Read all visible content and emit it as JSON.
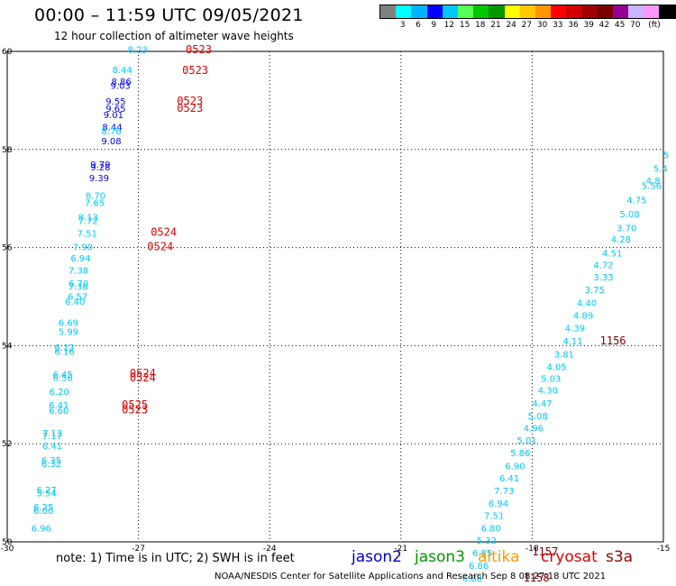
{
  "header": {
    "title": "00:00 – 11:59 UTC 09/05/2021",
    "subtitle": "12 hour collection of altimeter wave heights"
  },
  "legend": {
    "colors": [
      "#808080",
      "#00ffff",
      "#00b4ff",
      "#0000ff",
      "#00c8ff",
      "#55ff55",
      "#00c800",
      "#009600",
      "#ffff00",
      "#ffc800",
      "#ff9600",
      "#ff0000",
      "#d20000",
      "#a00000",
      "#780000",
      "#960096",
      "#c8b4ff",
      "#ff96ff",
      "#000000"
    ],
    "labels": [
      "3",
      "6",
      "9",
      "12",
      "15",
      "18",
      "21",
      "24",
      "27",
      "30",
      "33",
      "36",
      "39",
      "42",
      "45",
      "70"
    ],
    "unit": "(ft)"
  },
  "axes": {
    "x_ticks": [
      "-30",
      "-27",
      "-24",
      "-21",
      "-18",
      "-15"
    ],
    "y_ticks": [
      "50",
      "52",
      "54",
      "56",
      "58",
      "60"
    ]
  },
  "note": "note: 1) Time is in UTC; 2) SWH is in feet",
  "satellites": [
    {
      "name": "jason2",
      "color": "#0000cc"
    },
    {
      "name": "jason3",
      "color": "#009900"
    },
    {
      "name": "altika",
      "color": "#ff9900"
    },
    {
      "name": "cryosat",
      "color": "#dd0000"
    },
    {
      "name": "s3a",
      "color": "#990000"
    }
  ],
  "credit": "NOAA/NESDIS Center for Satellite Applications and Research   Sep  8 08:27:18 UTC 2021",
  "chart_data": {
    "type": "scatter",
    "xlim": [
      -30,
      -15
    ],
    "ylim": [
      50,
      60
    ],
    "grid": true,
    "points": [
      {
        "lon": -27.25,
        "lat": 59.97,
        "v": "8.23",
        "c": "#00c8ff"
      },
      {
        "lon": -27.6,
        "lat": 59.56,
        "v": "8.44",
        "c": "#00c8ff"
      },
      {
        "lon": -27.62,
        "lat": 59.32,
        "v": "8.86",
        "c": "#0000ff"
      },
      {
        "lon": -27.64,
        "lat": 59.24,
        "v": "9.03",
        "c": "#0000ff"
      },
      {
        "lon": -27.75,
        "lat": 58.92,
        "v": "9.55",
        "c": "#0000ff"
      },
      {
        "lon": -27.75,
        "lat": 58.77,
        "v": "9.65",
        "c": "#0000ff"
      },
      {
        "lon": -27.8,
        "lat": 58.64,
        "v": "9.01",
        "c": "#0000ff"
      },
      {
        "lon": -27.83,
        "lat": 58.39,
        "v": "8.44",
        "c": "#0000ff"
      },
      {
        "lon": -27.85,
        "lat": 58.31,
        "v": "8.76",
        "c": "#00c8ff"
      },
      {
        "lon": -27.85,
        "lat": 58.11,
        "v": "9.08",
        "c": "#0000ff"
      },
      {
        "lon": -28.1,
        "lat": 57.63,
        "v": "9.79",
        "c": "#0000ff"
      },
      {
        "lon": -28.1,
        "lat": 57.57,
        "v": "9.28",
        "c": "#0000ff"
      },
      {
        "lon": -28.13,
        "lat": 57.35,
        "v": "9.39",
        "c": "#0000ff"
      },
      {
        "lon": -28.21,
        "lat": 56.99,
        "v": "8.70",
        "c": "#00c8ff"
      },
      {
        "lon": -28.23,
        "lat": 56.85,
        "v": "7.65",
        "c": "#00c8ff"
      },
      {
        "lon": -28.38,
        "lat": 56.55,
        "v": "8.13",
        "c": "#00c8ff"
      },
      {
        "lon": -28.38,
        "lat": 56.48,
        "v": "7.72",
        "c": "#00c8ff"
      },
      {
        "lon": -28.4,
        "lat": 56.22,
        "v": "7.51",
        "c": "#00c8ff"
      },
      {
        "lon": -28.5,
        "lat": 55.95,
        "v": "7.90",
        "c": "#00c8ff"
      },
      {
        "lon": -28.55,
        "lat": 55.72,
        "v": "6.94",
        "c": "#00c8ff"
      },
      {
        "lon": -28.6,
        "lat": 55.47,
        "v": "7.38",
        "c": "#00c8ff"
      },
      {
        "lon": -28.6,
        "lat": 55.2,
        "v": "6.70",
        "c": "#00c8ff"
      },
      {
        "lon": -28.61,
        "lat": 55.14,
        "v": "7.38",
        "c": "#00c8ff"
      },
      {
        "lon": -28.62,
        "lat": 54.94,
        "v": "6.57",
        "c": "#00c8ff"
      },
      {
        "lon": -28.68,
        "lat": 54.83,
        "v": "6.40",
        "c": "#00c8ff"
      },
      {
        "lon": -28.83,
        "lat": 54.4,
        "v": "6.69",
        "c": "#00c8ff"
      },
      {
        "lon": -28.83,
        "lat": 54.22,
        "v": "5.99",
        "c": "#00c8ff"
      },
      {
        "lon": -28.92,
        "lat": 53.9,
        "v": "6.13",
        "c": "#00c8ff"
      },
      {
        "lon": -28.92,
        "lat": 53.81,
        "v": "6.16",
        "c": "#00c8ff"
      },
      {
        "lon": -28.96,
        "lat": 53.35,
        "v": "6.45",
        "c": "#00c8ff"
      },
      {
        "lon": -28.96,
        "lat": 53.28,
        "v": "6.56",
        "c": "#00c8ff"
      },
      {
        "lon": -29.04,
        "lat": 53.0,
        "v": "6.20",
        "c": "#00c8ff"
      },
      {
        "lon": -29.05,
        "lat": 52.72,
        "v": "6.41",
        "c": "#00c8ff"
      },
      {
        "lon": -29.05,
        "lat": 52.61,
        "v": "6.60",
        "c": "#00c8ff"
      },
      {
        "lon": -29.2,
        "lat": 52.15,
        "v": "7.13",
        "c": "#00c8ff"
      },
      {
        "lon": -29.2,
        "lat": 52.1,
        "v": "7.17",
        "c": "#00c8ff"
      },
      {
        "lon": -29.2,
        "lat": 51.89,
        "v": "6.41",
        "c": "#00c8ff"
      },
      {
        "lon": -29.22,
        "lat": 51.6,
        "v": "6.35",
        "c": "#00c8ff"
      },
      {
        "lon": -29.22,
        "lat": 51.53,
        "v": "6.32",
        "c": "#00c8ff"
      },
      {
        "lon": -29.33,
        "lat": 50.99,
        "v": "6.27",
        "c": "#00c8ff"
      },
      {
        "lon": -29.33,
        "lat": 50.93,
        "v": "5.54",
        "c": "#00c8ff"
      },
      {
        "lon": -29.4,
        "lat": 50.64,
        "v": "6.25",
        "c": "#00c8ff"
      },
      {
        "lon": -29.4,
        "lat": 50.57,
        "v": "6.00",
        "c": "#00c8ff"
      },
      {
        "lon": -29.45,
        "lat": 50.21,
        "v": "6.96",
        "c": "#00c8ff"
      },
      {
        "lon": -15.0,
        "lat": 57.82,
        "v": "5",
        "c": "#00c8ff"
      },
      {
        "lon": -15.23,
        "lat": 57.55,
        "v": "5.4",
        "c": "#00c8ff"
      },
      {
        "lon": -15.4,
        "lat": 57.3,
        "v": "4.8",
        "c": "#00c8ff"
      },
      {
        "lon": -15.5,
        "lat": 57.2,
        "v": "5.56",
        "c": "#00c8ff"
      },
      {
        "lon": -15.84,
        "lat": 56.9,
        "v": "4.75",
        "c": "#00c8ff"
      },
      {
        "lon": -16.0,
        "lat": 56.62,
        "v": "5.08",
        "c": "#00c8ff"
      },
      {
        "lon": -16.07,
        "lat": 56.33,
        "v": "3.70",
        "c": "#00c8ff"
      },
      {
        "lon": -16.2,
        "lat": 56.1,
        "v": "4.28",
        "c": "#00c8ff"
      },
      {
        "lon": -16.4,
        "lat": 55.82,
        "v": "4.51",
        "c": "#00c8ff"
      },
      {
        "lon": -16.6,
        "lat": 55.58,
        "v": "4.72",
        "c": "#00c8ff"
      },
      {
        "lon": -16.6,
        "lat": 55.33,
        "v": "3.33",
        "c": "#00c8ff"
      },
      {
        "lon": -16.8,
        "lat": 55.07,
        "v": "3.75",
        "c": "#00c8ff"
      },
      {
        "lon": -16.98,
        "lat": 54.81,
        "v": "4.40",
        "c": "#00c8ff"
      },
      {
        "lon": -17.06,
        "lat": 54.55,
        "v": "4.89",
        "c": "#00c8ff"
      },
      {
        "lon": -17.25,
        "lat": 54.29,
        "v": "4.39",
        "c": "#00c8ff"
      },
      {
        "lon": -17.3,
        "lat": 54.03,
        "v": "4.11",
        "c": "#00c8ff"
      },
      {
        "lon": -17.5,
        "lat": 53.76,
        "v": "3.81",
        "c": "#00c8ff"
      },
      {
        "lon": -17.67,
        "lat": 53.5,
        "v": "4.05",
        "c": "#00c8ff"
      },
      {
        "lon": -17.8,
        "lat": 53.26,
        "v": "5.03",
        "c": "#00c8ff"
      },
      {
        "lon": -17.87,
        "lat": 53.02,
        "v": "4.30",
        "c": "#00c8ff"
      },
      {
        "lon": -18.0,
        "lat": 52.76,
        "v": "4.47",
        "c": "#00c8ff"
      },
      {
        "lon": -18.1,
        "lat": 52.5,
        "v": "5.08",
        "c": "#00c8ff"
      },
      {
        "lon": -18.2,
        "lat": 52.25,
        "v": "4.96",
        "c": "#00c8ff"
      },
      {
        "lon": -18.35,
        "lat": 52.0,
        "v": "5.01",
        "c": "#00c8ff"
      },
      {
        "lon": -18.5,
        "lat": 51.75,
        "v": "5.86",
        "c": "#00c8ff"
      },
      {
        "lon": -18.62,
        "lat": 51.48,
        "v": "6.90",
        "c": "#00c8ff"
      },
      {
        "lon": -18.75,
        "lat": 51.23,
        "v": "6.41",
        "c": "#00c8ff"
      },
      {
        "lon": -18.87,
        "lat": 50.97,
        "v": "7.73",
        "c": "#00c8ff"
      },
      {
        "lon": -19.0,
        "lat": 50.72,
        "v": "6.94",
        "c": "#00c8ff"
      },
      {
        "lon": -19.1,
        "lat": 50.47,
        "v": "7.51",
        "c": "#00c8ff"
      },
      {
        "lon": -19.17,
        "lat": 50.21,
        "v": "6.80",
        "c": "#00c8ff"
      },
      {
        "lon": -19.27,
        "lat": 49.96,
        "v": "5.32",
        "c": "#00c8ff"
      },
      {
        "lon": -19.37,
        "lat": 49.71,
        "v": "6.85",
        "c": "#00c8ff"
      },
      {
        "lon": -19.45,
        "lat": 49.45,
        "v": "6.86",
        "c": "#00c8ff"
      },
      {
        "lon": -19.6,
        "lat": 49.19,
        "v": "6.88",
        "c": "#00c8ff"
      }
    ],
    "time_labels": [
      {
        "lon": -25.92,
        "lat": 59.96,
        "t": "0523",
        "c": "#dd0000"
      },
      {
        "lon": -26.0,
        "lat": 59.54,
        "t": "0523",
        "c": "#dd0000"
      },
      {
        "lon": -26.12,
        "lat": 58.92,
        "t": "0523",
        "c": "#dd0000"
      },
      {
        "lon": -26.12,
        "lat": 58.77,
        "t": "0523",
        "c": "#dd0000"
      },
      {
        "lon": -26.72,
        "lat": 56.24,
        "t": "0524",
        "c": "#dd0000"
      },
      {
        "lon": -26.8,
        "lat": 55.95,
        "t": "0524",
        "c": "#dd0000"
      },
      {
        "lon": -27.2,
        "lat": 53.36,
        "t": "0524",
        "c": "#dd0000"
      },
      {
        "lon": -27.2,
        "lat": 53.27,
        "t": "0524",
        "c": "#dd0000"
      },
      {
        "lon": -27.38,
        "lat": 52.72,
        "t": "0525",
        "c": "#dd0000"
      },
      {
        "lon": -27.38,
        "lat": 52.62,
        "t": "0523",
        "c": "#dd0000"
      },
      {
        "lon": -16.45,
        "lat": 54.03,
        "t": "1156",
        "c": "#7a0000"
      },
      {
        "lon": -18.0,
        "lat": 49.72,
        "t": "1157",
        "c": "#7a0000"
      },
      {
        "lon": -18.2,
        "lat": 49.19,
        "t": "1158",
        "c": "#7a0000"
      }
    ]
  }
}
